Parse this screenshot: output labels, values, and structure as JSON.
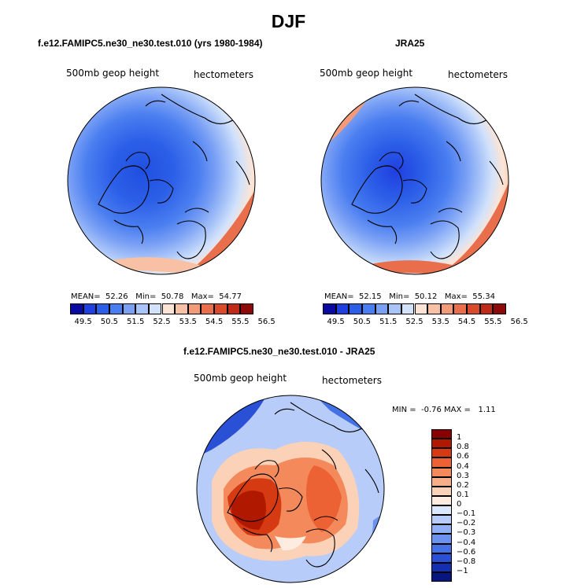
{
  "main_title": "DJF",
  "panels": [
    {
      "id": "model",
      "title": "f.e12.FAMIPC5.ne30_ne30.test.010 (yrs 1980-1984)",
      "variable": "500mb geop height",
      "units": "hectometers",
      "stats": {
        "mean_label": "MEAN=",
        "mean": "52.26",
        "min_label": "Min=",
        "min": "50.78",
        "max_label": "Max=",
        "max": "54.77"
      },
      "colorbar_labels": [
        "49.5",
        "50.5",
        "51.5",
        "52.5",
        "53.5",
        "54.5",
        "55.5",
        "56.5"
      ]
    },
    {
      "id": "obs",
      "title": "JRA25",
      "variable": "500mb geop height",
      "units": "hectometers",
      "stats": {
        "mean_label": "MEAN=",
        "mean": "52.15",
        "min_label": "Min=",
        "min": "50.12",
        "max_label": "Max=",
        "max": "55.34"
      },
      "colorbar_labels": [
        "49.5",
        "50.5",
        "51.5",
        "52.5",
        "53.5",
        "54.5",
        "55.5",
        "56.5"
      ]
    },
    {
      "id": "diff",
      "title": "f.e12.FAMIPC5.ne30_ne30.test.010 - JRA25",
      "variable": "500mb geop height",
      "units": "hectometers",
      "stats": {
        "min_label": "MIN =",
        "min": "-0.76",
        "max_label": "MAX =",
        "max": "1.11"
      },
      "colorbar_labels": [
        "1",
        "0.8",
        "0.6",
        "0.4",
        "0.3",
        "0.2",
        "0.1",
        "0",
        "−0.1",
        "−0.2",
        "−0.3",
        "−0.4",
        "−0.6",
        "−0.8",
        "−1"
      ]
    }
  ],
  "colors": {
    "abs_scale": [
      "#0a0aa0",
      "#1f3fe0",
      "#2c5fe8",
      "#4a7ef0",
      "#7aa0f5",
      "#a8c4f8",
      "#d2e2fb",
      "#fde4d4",
      "#f8c0a4",
      "#f39a78",
      "#e86e4c",
      "#d94a2c",
      "#c02a18",
      "#8c0a0a"
    ],
    "diff_scale": [
      "#880000",
      "#b01800",
      "#d63a12",
      "#ec6234",
      "#f48a5c",
      "#f8ae88",
      "#fbd2b8",
      "#fdecdf",
      "#dce8fb",
      "#b7ccf8",
      "#8fb0f4",
      "#6a92ee",
      "#4472e6",
      "#2a50d6",
      "#1430b0",
      "#0a1680"
    ]
  }
}
